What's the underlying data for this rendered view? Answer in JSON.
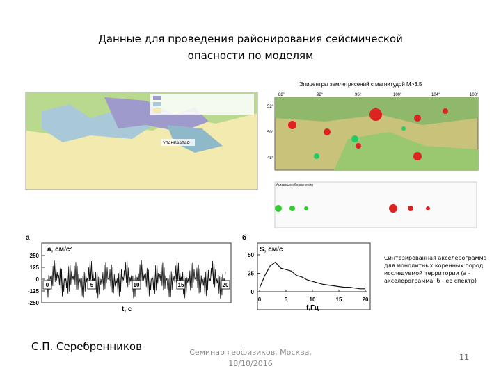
{
  "header": {
    "title": "Данные для проведения районирования сейсмической опасности по моделям"
  },
  "map_left": {
    "city": "УЛАНБААТАР"
  },
  "map_right": {
    "title": "Эпицентры землетрясений с магнитудой M>3.5",
    "lon_labels": [
      "88°",
      "92°",
      "96°",
      "100°",
      "104°",
      "108°"
    ],
    "lat_labels": [
      "52°",
      "50°",
      "48°"
    ],
    "legend_title": "Условные обозначения"
  },
  "plot_a": {
    "label": "а",
    "y_label": "a, см/с²",
    "x_label": "t, c",
    "yticks": [
      250,
      125,
      0,
      -125,
      -250
    ],
    "ylim": [
      -250,
      250
    ],
    "xticks": [
      0,
      5,
      10,
      15,
      20
    ],
    "xlim": [
      0,
      20
    ]
  },
  "plot_b": {
    "label": "б",
    "y_label": "S, см/с",
    "x_label": "f,Гц",
    "yticks": [
      50,
      25,
      0
    ],
    "ylim": [
      0,
      50
    ],
    "xticks": [
      0,
      5,
      10,
      15,
      20
    ],
    "xlim": [
      0,
      20
    ],
    "x": [
      0,
      1,
      2,
      3,
      4,
      5,
      6,
      7,
      8,
      9,
      10,
      11,
      12,
      13,
      14,
      15,
      16,
      17,
      18,
      19,
      20
    ],
    "values": [
      5,
      22,
      35,
      40,
      32,
      30,
      28,
      22,
      20,
      16,
      14,
      12,
      10,
      9,
      8,
      7,
      6,
      6,
      5,
      4,
      4
    ]
  },
  "caption": "Синтезированная акселерограмма для монолитных коренных пород исследуемой территории (а - акселерограмма; б - ее спектр)",
  "footer": {
    "author": "С.П. Серебренников",
    "event": "Семинар геофизиков, Москва, 18/10/2016",
    "page": "11"
  }
}
